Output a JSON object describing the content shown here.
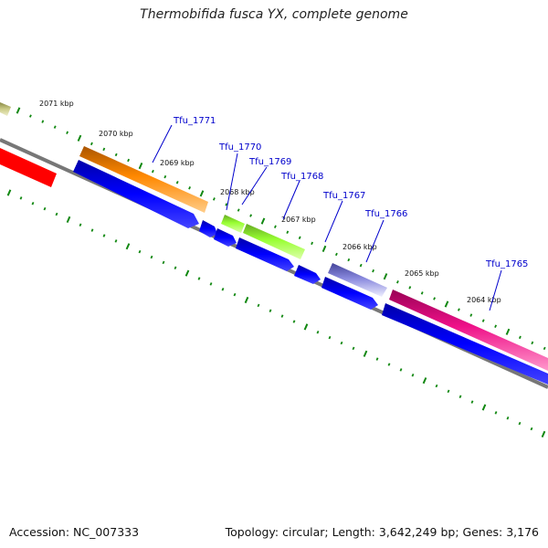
{
  "title": "Thermobifida fusca YX, complete genome",
  "footer": {
    "accession": "Accession: NC_007333",
    "topology": "Topology: circular; Length: 3,642,249 bp; Genes: 3,176"
  },
  "kbp_labels": [
    "2071 kbp",
    "2070 kbp",
    "2069 kbp",
    "2068 kbp",
    "2067 kbp",
    "2066 kbp",
    "2065 kbp",
    "2064 kbp"
  ],
  "gene_labels": [
    "Tfu_1771",
    "Tfu_1770",
    "Tfu_1769",
    "Tfu_1768",
    "Tfu_1767",
    "Tfu_1766",
    "Tfu_1765"
  ],
  "colors": {
    "red": "#ff0000",
    "orange": "#ff8800",
    "lime": "#99ff33",
    "purple": "#7777dd",
    "magenta": "#ee1188",
    "olive": "#cccc88",
    "blue": "#0000ee",
    "backbone": "#777777",
    "tick": "#118811",
    "leader": "#0000cc"
  }
}
